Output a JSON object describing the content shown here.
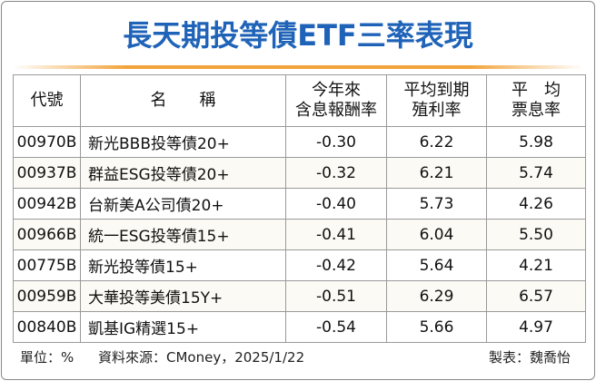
{
  "title": "長天期投等債ETF三率表現",
  "table": {
    "header": [
      [
        "代號"
      ],
      [
        "名　　稱"
      ],
      [
        "今年來",
        "含息報酬率"
      ],
      [
        "平均到期",
        "殖利率"
      ],
      [
        "平　均",
        "票息率"
      ]
    ],
    "rows": [
      [
        "00970B",
        "新光BBB投等債20+",
        "-0.30",
        "6.22",
        "5.98"
      ],
      [
        "00937B",
        "群益ESG投等債20+",
        "-0.32",
        "6.21",
        "5.74"
      ],
      [
        "00942B",
        "台新美A公司債20+",
        "-0.40",
        "5.73",
        "4.26"
      ],
      [
        "00966B",
        "統一ESG投等債15+",
        "-0.41",
        "6.04",
        "5.50"
      ],
      [
        "00775B",
        "新光投等債15+",
        "-0.42",
        "5.64",
        "4.21"
      ],
      [
        "00959B",
        "大華投等美債15Y+",
        "-0.51",
        "6.29",
        "6.57"
      ],
      [
        "00840B",
        "凱基IG精選15+",
        "-0.54",
        "5.66",
        "4.97"
      ]
    ]
  },
  "footer": {
    "unit": "單位：%",
    "source": "資料來源：CMoney，2025/1/22",
    "author": "製表：魏喬怡"
  }
}
